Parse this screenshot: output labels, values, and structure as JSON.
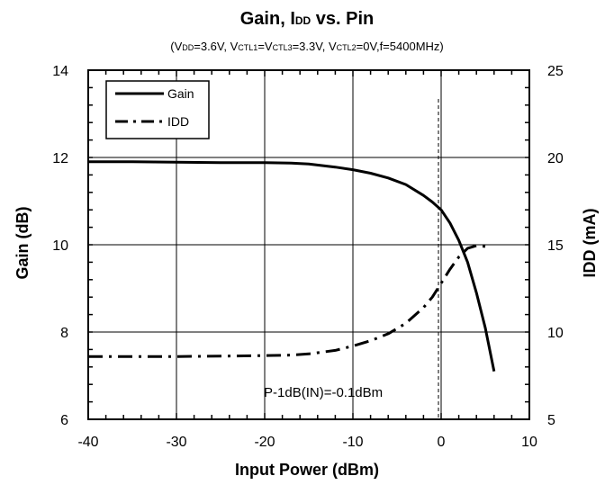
{
  "chart_data": {
    "type": "line",
    "title": {
      "main_start": "Gain, I",
      "main_sub": "DD",
      "main_end": " vs. Pin"
    },
    "subtitle": {
      "p1": "(V",
      "p1s": "DD",
      "p2": "=3.6V, V",
      "p2s": "CTL1",
      "p3": "=V",
      "p3s": "CTL3",
      "p4": "=3.3V, V",
      "p4s": "CTL2",
      "p5": "=0V,f=5400MHz)"
    },
    "xlabel": "Input Power (dBm)",
    "ylabel_left": "Gain (dB)",
    "ylabel_right": "IDD  (mA)",
    "xlim": [
      -40,
      10
    ],
    "ylim_left": [
      6,
      14
    ],
    "ylim_right": [
      5,
      25
    ],
    "x_ticks": [
      "-40",
      "-30",
      "-20",
      "-10",
      "0",
      "10"
    ],
    "y_left_ticks": [
      "14",
      "12",
      "10",
      "8",
      "6"
    ],
    "y_right_ticks": [
      "25",
      "20",
      "15",
      "10",
      "5"
    ],
    "grid": true,
    "legend": {
      "placement": "top-left",
      "items": [
        {
          "name": "Gain",
          "style": "solid"
        },
        {
          "name": "IDD",
          "style": "dash-dot"
        }
      ]
    },
    "annotation": {
      "text": "P-1dB(IN)=-0.1dBm",
      "x": -0.1
    },
    "series": [
      {
        "name": "Gain",
        "axis": "left",
        "x": [
          -40,
          -35,
          -30,
          -25,
          -20,
          -17,
          -15,
          -12,
          -10,
          -8,
          -6,
          -4,
          -2,
          -1,
          0,
          1,
          2,
          3,
          4,
          5,
          6
        ],
        "y": [
          11.9,
          11.9,
          11.89,
          11.88,
          11.88,
          11.87,
          11.85,
          11.78,
          11.72,
          11.64,
          11.53,
          11.38,
          11.13,
          10.98,
          10.8,
          10.5,
          10.1,
          9.6,
          8.9,
          8.1,
          7.1
        ]
      },
      {
        "name": "IDD",
        "axis": "right",
        "x": [
          -40,
          -35,
          -30,
          -25,
          -20,
          -17,
          -15,
          -12,
          -10,
          -8,
          -6,
          -4,
          -2,
          -1,
          0,
          1,
          2,
          3,
          4,
          5
        ],
        "y": [
          8.6,
          8.6,
          8.6,
          8.62,
          8.65,
          8.68,
          8.75,
          8.95,
          9.2,
          9.5,
          9.9,
          10.5,
          11.4,
          12.0,
          12.8,
          13.6,
          14.3,
          14.8,
          14.95,
          14.9
        ]
      }
    ]
  }
}
